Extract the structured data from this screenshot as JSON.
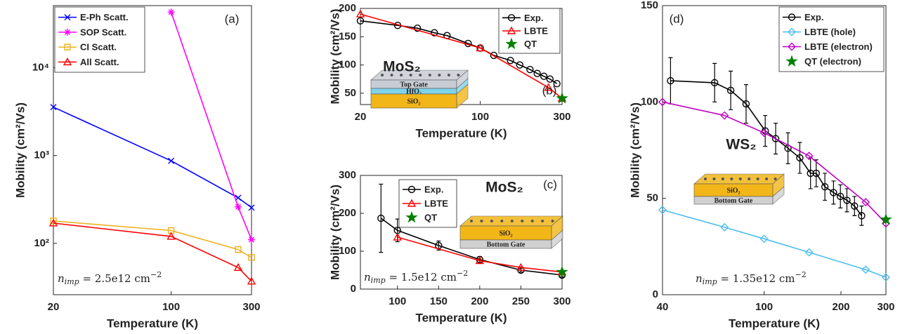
{
  "chart_data": [
    {
      "type": "line",
      "label": "(a)",
      "xscale": "log",
      "yscale": "log",
      "xlabel": "Temperature (K)",
      "ylabel": "Mobility (cm²/Vs)",
      "xlim": [
        20,
        300
      ],
      "xticks": [
        20,
        100,
        300
      ],
      "ylim": [
        26,
        51000
      ],
      "yticks": [
        {
          "value": 100,
          "label": "10²"
        },
        {
          "value": 1000,
          "label": "10³"
        },
        {
          "value": 10000,
          "label": "10⁴"
        }
      ],
      "legend": "upper left",
      "note": {
        "symbol": "n",
        "sub": "imp",
        "text": " = 2.5e12 cm",
        "sup": "−2"
      },
      "series": [
        {
          "name": "E-Ph Scatt.",
          "color": "#0000ff",
          "marker": "x",
          "x": [
            20,
            100,
            250,
            300
          ],
          "values": [
            3560,
            870,
            330,
            255
          ]
        },
        {
          "name": "SOP Scatt.",
          "color": "#ff00ff",
          "marker": "asterisk",
          "x": [
            100,
            250,
            300
          ],
          "values": [
            43000,
            260,
            110
          ]
        },
        {
          "name": "CI Scatt.",
          "color": "#edb120",
          "marker": "square",
          "x": [
            20,
            100,
            250,
            300
          ],
          "values": [
            180,
            140,
            85,
            69
          ]
        },
        {
          "name": "All Scatt.",
          "color": "#ff0000",
          "marker": "triangle",
          "x": [
            20,
            100,
            250,
            300
          ],
          "values": [
            170,
            120,
            53,
            37
          ]
        }
      ]
    },
    {
      "type": "line",
      "label": "(b)",
      "xscale": "log",
      "yscale": "linear",
      "xlabel": "Temperature (K)",
      "ylabel": "Mobility (cm²/Vs)",
      "xlim": [
        20,
        300
      ],
      "xticks": [
        20,
        100,
        300
      ],
      "ylim": [
        30,
        200
      ],
      "yticks": [
        50,
        100,
        150,
        200
      ],
      "legend": "upper right",
      "inset": {
        "material": "MoS₂",
        "layers": [
          {
            "label": "Top Gate",
            "color": "#c8ccd4"
          },
          {
            "label": "HfO₂",
            "color": "#7fd3ea"
          },
          {
            "label": "SiO₂",
            "color": "#f2b619"
          }
        ]
      },
      "series": [
        {
          "name": "Exp.",
          "color": "#000000",
          "marker": "circle",
          "x": [
            20,
            33,
            43,
            54,
            64,
            85,
            100,
            120,
            150,
            170,
            195,
            215,
            235,
            255,
            280
          ],
          "values": [
            178,
            170,
            165,
            157,
            152,
            138,
            130,
            117,
            108,
            100,
            92,
            85,
            80,
            75,
            67
          ]
        },
        {
          "name": "LBTE",
          "color": "#ff0000",
          "marker": "triangle",
          "x": [
            20,
            100,
            250,
            300
          ],
          "values": [
            190,
            130,
            60,
            41
          ]
        },
        {
          "name": "QT",
          "color": "#008000",
          "marker": "star",
          "x": [
            300
          ],
          "values": [
            41
          ]
        }
      ]
    },
    {
      "type": "line",
      "label": "(c)",
      "xscale": "linear",
      "yscale": "linear",
      "xlabel": "Temperature (K)",
      "ylabel": "Mobility (cm²/Vs)",
      "xlim": [
        55,
        300
      ],
      "xticks": [
        100,
        150,
        200,
        250,
        300
      ],
      "ylim": [
        0,
        300
      ],
      "yticks": [
        0,
        100,
        200,
        300
      ],
      "legend": "upper left",
      "note": {
        "symbol": "n",
        "sub": "imp",
        "text": " = 1.5e12 cm",
        "sup": "−2"
      },
      "inset": {
        "material": "MoS₂",
        "layers": [
          {
            "label": "SiO₂",
            "color": "#f2b619"
          },
          {
            "label": "Bottom Gate",
            "color": "#d0d0d0"
          }
        ]
      },
      "series": [
        {
          "name": "Exp.",
          "color": "#000000",
          "marker": "circle",
          "x": [
            80,
            100,
            150,
            200,
            250,
            300
          ],
          "values": [
            187,
            155,
            115,
            78,
            50,
            37
          ],
          "errors": [
            90,
            30,
            12,
            8,
            5,
            5
          ]
        },
        {
          "name": "LBTE",
          "color": "#ff0000",
          "marker": "triangle",
          "x": [
            100,
            200,
            250,
            300
          ],
          "values": [
            137,
            75,
            57,
            45
          ]
        },
        {
          "name": "QT",
          "color": "#008000",
          "marker": "star",
          "x": [
            300
          ],
          "values": [
            45
          ]
        }
      ]
    },
    {
      "type": "line",
      "label": "(d)",
      "xscale": "log",
      "yscale": "linear",
      "xlabel": "Temperature (K)",
      "ylabel": "Mobility (cm²/Vs)",
      "xlim": [
        40,
        300
      ],
      "xticks": [
        40,
        100,
        200,
        300
      ],
      "ylim": [
        0,
        150
      ],
      "yticks": [
        0,
        50,
        100,
        150
      ],
      "legend": "upper right",
      "note": {
        "symbol": "n",
        "sub": "imp",
        "text": " = 1.35e12 cm",
        "sup": "−2"
      },
      "inset": {
        "material": "WS₂",
        "layers": [
          {
            "label": "SiO₂",
            "color": "#f2b619"
          },
          {
            "label": "Bottom Gate",
            "color": "#d0d0d0"
          }
        ]
      },
      "series": [
        {
          "name": "Exp.",
          "color": "#000000",
          "marker": "circle",
          "x": [
            43,
            64,
            74,
            85,
            101,
            111,
            124,
            138,
            152,
            160,
            173,
            187,
            199,
            211,
            226,
            241
          ],
          "values": [
            111,
            110,
            106,
            99,
            85,
            81,
            76,
            71,
            63,
            63,
            56,
            53,
            51,
            49,
            46,
            41
          ],
          "errors": [
            12,
            10,
            10,
            10,
            8,
            8,
            8,
            8,
            8,
            7,
            7,
            6,
            6,
            6,
            5,
            5
          ]
        },
        {
          "name": "LBTE (hole)",
          "color": "#4dbeee",
          "marker": "diamond",
          "x": [
            40,
            70,
            100,
            150,
            250,
            300
          ],
          "values": [
            44,
            35,
            29,
            22,
            13,
            9
          ]
        },
        {
          "name": "LBTE (electron)",
          "color": "#bf00bf",
          "marker": "diamond",
          "x": [
            40,
            70,
            100,
            150,
            250,
            300
          ],
          "values": [
            100,
            93,
            84,
            72,
            48,
            37
          ]
        },
        {
          "name": "QT (electron)",
          "color": "#008000",
          "marker": "star",
          "x": [
            300
          ],
          "values": [
            39
          ]
        }
      ]
    }
  ]
}
